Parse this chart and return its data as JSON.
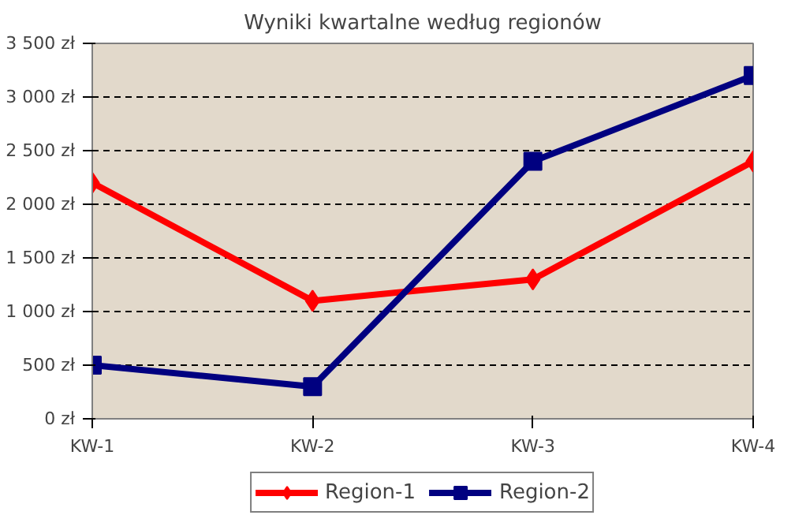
{
  "chart_data": {
    "type": "line",
    "title": "Wyniki kwartalne według regionów",
    "categories": [
      "KW-1",
      "KW-2",
      "KW-3",
      "KW-4"
    ],
    "series": [
      {
        "name": "Region-1",
        "color": "#ff0000",
        "marker": "diamond",
        "values": [
          2200,
          1100,
          1300,
          2400
        ]
      },
      {
        "name": "Region-2",
        "color": "#000080",
        "marker": "square",
        "values": [
          500,
          300,
          2400,
          3200
        ]
      }
    ],
    "ylim": [
      0,
      3500
    ],
    "yticks": [
      {
        "value": 0,
        "label": "0 zł"
      },
      {
        "value": 500,
        "label": "500 zł"
      },
      {
        "value": 1000,
        "label": "1 000 zł"
      },
      {
        "value": 1500,
        "label": "1 500 zł"
      },
      {
        "value": 2000,
        "label": "2 000 zł"
      },
      {
        "value": 2500,
        "label": "2 500 zł"
      },
      {
        "value": 3000,
        "label": "3 000 zł"
      },
      {
        "value": 3500,
        "label": "3 500 zł"
      }
    ],
    "grid": "y",
    "legend": "bottom",
    "line_style": "solid"
  }
}
